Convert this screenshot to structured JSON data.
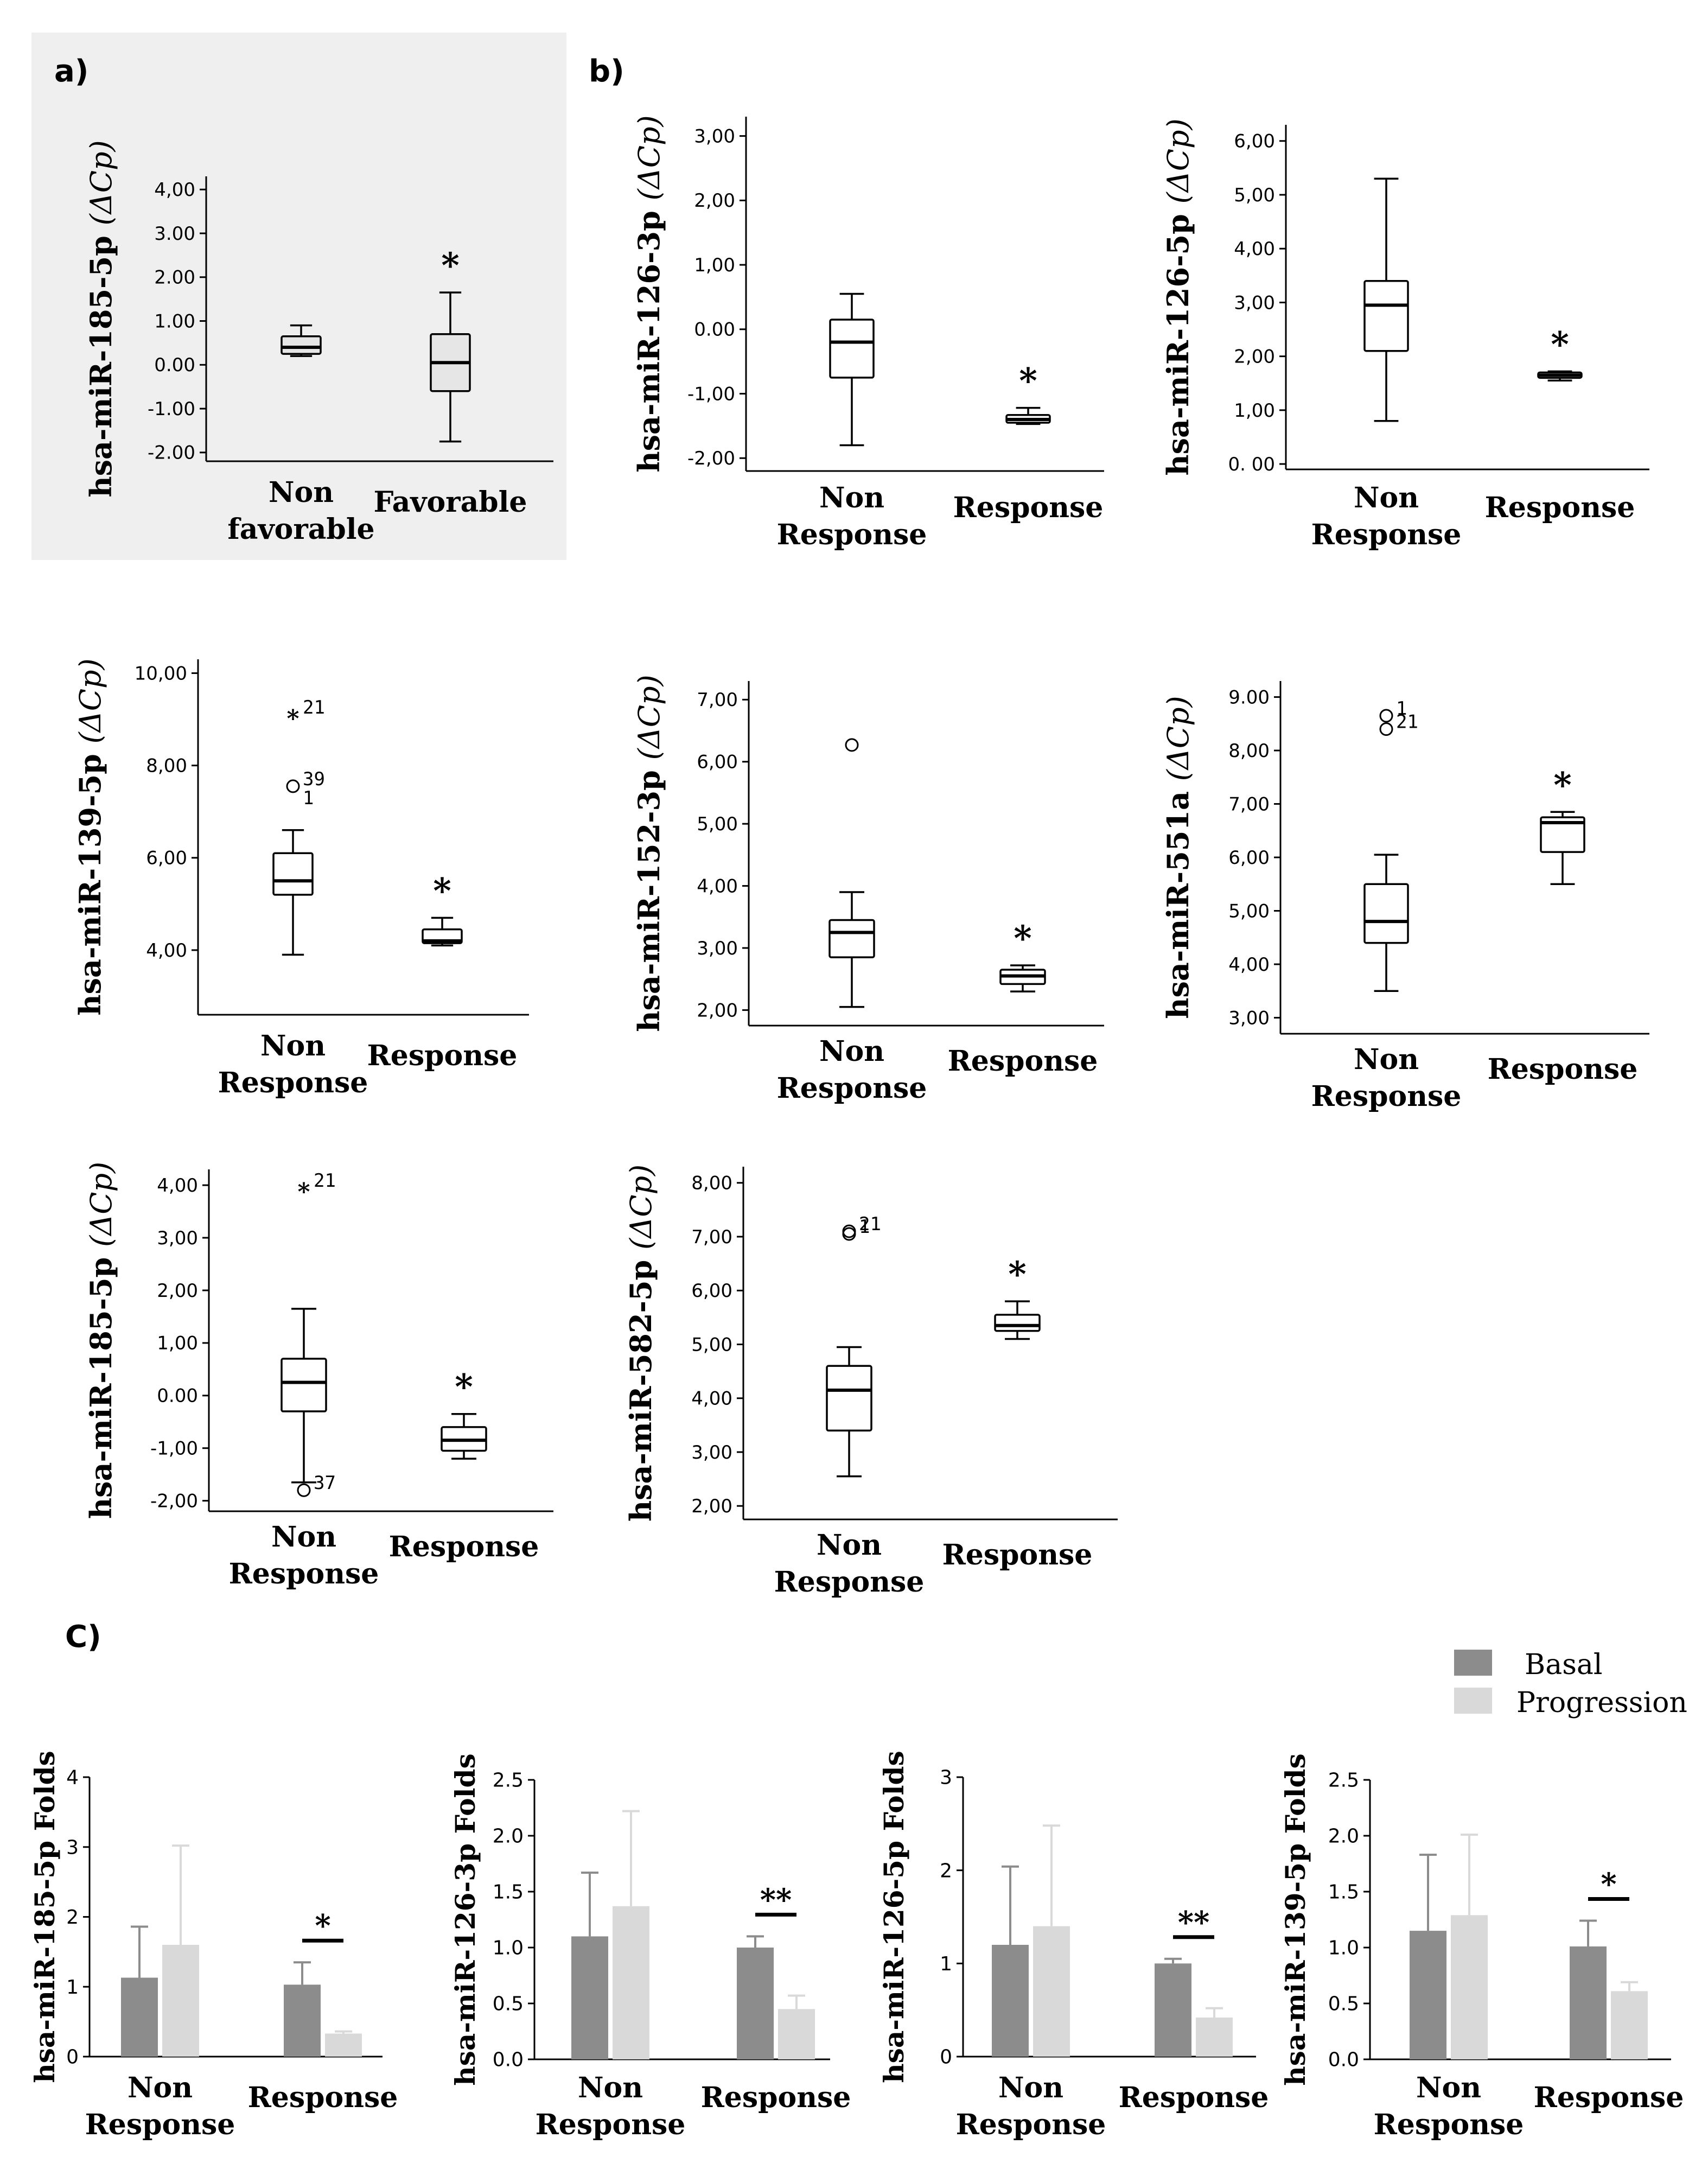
{
  "panels": {
    "a": "a)",
    "b": "b)",
    "c": "C)"
  },
  "legend": {
    "basal": "Basal",
    "progression": "Progression"
  },
  "colors": {
    "basal": "#8c8c8c",
    "progression": "#d9d9d9",
    "panel_a_bg": "#efefef",
    "panel_a_box": "#e6e6e6",
    "axis": "#000000"
  },
  "chart_data": [
    {
      "type": "box",
      "panel": "a",
      "ylabel_text": "hsa-miR-185-5p ",
      "ylabel_unit": "(ΔCp)",
      "yticks": [
        "4,00",
        "3.00",
        "2.00",
        "1.00",
        "0.00",
        "-1.00",
        "-2.00"
      ],
      "tick_values": [
        4,
        3,
        2,
        1,
        0,
        -1,
        -2
      ],
      "ylim": [
        -2.2,
        4.3
      ],
      "categories": [
        [
          "Non",
          "favorable"
        ],
        [
          "Favorable"
        ]
      ],
      "boxes": [
        {
          "min": 0.2,
          "q1": 0.25,
          "median": 0.4,
          "q3": 0.65,
          "max": 0.9
        },
        {
          "min": -1.75,
          "q1": -0.6,
          "median": 0.05,
          "q3": 0.7,
          "max": 1.65
        }
      ],
      "significance": [
        "",
        "*"
      ],
      "outliers": []
    },
    {
      "type": "box",
      "panel": "b",
      "ylabel_text": "hsa-miR-126-3p ",
      "ylabel_unit": "(ΔCp)",
      "yticks": [
        "3,00",
        "2,00",
        "1,00",
        "0.00",
        "-1,00",
        "-2,00"
      ],
      "tick_values": [
        3,
        2,
        1,
        0,
        -1,
        -2
      ],
      "ylim": [
        -2.2,
        3.3
      ],
      "categories": [
        [
          "Non",
          "Response"
        ],
        [
          "Response"
        ]
      ],
      "boxes": [
        {
          "min": -1.8,
          "q1": -0.75,
          "median": -0.2,
          "q3": 0.15,
          "max": 0.55
        },
        {
          "min": -1.47,
          "q1": -1.45,
          "median": -1.4,
          "q3": -1.33,
          "max": -1.22
        }
      ],
      "significance": [
        "",
        "*"
      ],
      "outliers": []
    },
    {
      "type": "box",
      "panel": "b",
      "ylabel_text": "hsa-miR-126-5p ",
      "ylabel_unit": "(ΔCp)",
      "yticks": [
        "6,00",
        "5,00",
        "4,00",
        "3,00",
        "2,00",
        "1,00",
        "0. 00"
      ],
      "tick_values": [
        6,
        5,
        4,
        3,
        2,
        1,
        0
      ],
      "ylim": [
        -0.1,
        6.3
      ],
      "categories": [
        [
          "Non",
          "Response"
        ],
        [
          "Response"
        ]
      ],
      "boxes": [
        {
          "min": 0.8,
          "q1": 2.1,
          "median": 2.95,
          "q3": 3.4,
          "max": 5.3
        },
        {
          "min": 1.55,
          "q1": 1.6,
          "median": 1.65,
          "q3": 1.7,
          "max": 1.72
        }
      ],
      "significance": [
        "",
        "*"
      ],
      "outliers": []
    },
    {
      "type": "box",
      "panel": "b",
      "ylabel_text": "hsa-miR-139-5p ",
      "ylabel_unit": "(ΔCp)",
      "yticks": [
        "10,00",
        "8,00",
        "6,00",
        "4,00"
      ],
      "tick_values": [
        10,
        8,
        6,
        4
      ],
      "ylim": [
        2.6,
        10.3
      ],
      "categories": [
        [
          "Non",
          "Response"
        ],
        [
          "Response"
        ]
      ],
      "boxes": [
        {
          "min": 3.9,
          "q1": 5.2,
          "median": 5.5,
          "q3": 6.1,
          "max": 6.6
        },
        {
          "min": 4.1,
          "q1": 4.15,
          "median": 4.2,
          "q3": 4.45,
          "max": 4.7
        }
      ],
      "significance": [
        "",
        "*"
      ],
      "outliers": [
        {
          "box": 0,
          "y": 9.1,
          "marker": "star",
          "label": "21"
        },
        {
          "box": 0,
          "y": 7.55,
          "marker": "circle",
          "label": "39"
        },
        {
          "box": 0,
          "y": 7.3,
          "marker": "none",
          "label": "1"
        }
      ]
    },
    {
      "type": "box",
      "panel": "b",
      "ylabel_text": "hsa-miR-152-3p ",
      "ylabel_unit": "(ΔCp)",
      "yticks": [
        "7,00",
        "6,00",
        "5,00",
        "4,00",
        "3,00",
        "2,00"
      ],
      "tick_values": [
        7,
        6,
        5,
        4,
        3,
        2
      ],
      "ylim": [
        1.75,
        7.3
      ],
      "categories": [
        [
          "Non",
          "Response"
        ],
        [
          "Response"
        ]
      ],
      "boxes": [
        {
          "min": 2.05,
          "q1": 2.85,
          "median": 3.25,
          "q3": 3.45,
          "max": 3.9
        },
        {
          "min": 2.3,
          "q1": 2.42,
          "median": 2.55,
          "q3": 2.65,
          "max": 2.72
        }
      ],
      "significance": [
        "",
        "*"
      ],
      "outliers": [
        {
          "box": 0,
          "y": 6.27,
          "marker": "circle",
          "label": ""
        }
      ]
    },
    {
      "type": "box",
      "panel": "b",
      "ylabel_text": "hsa-miR-551a ",
      "ylabel_unit": "(ΔCp)",
      "yticks": [
        "9.00",
        "8,00",
        "7,00",
        "6,00",
        "5,00",
        "4,00",
        "3,00"
      ],
      "tick_values": [
        9,
        8,
        7,
        6,
        5,
        4,
        3
      ],
      "ylim": [
        2.7,
        9.3
      ],
      "categories": [
        [
          "Non",
          "Response"
        ],
        [
          "Response"
        ]
      ],
      "boxes": [
        {
          "min": 3.5,
          "q1": 4.4,
          "median": 4.8,
          "q3": 5.5,
          "max": 6.05
        },
        {
          "min": 5.5,
          "q1": 6.1,
          "median": 6.65,
          "q3": 6.75,
          "max": 6.85
        }
      ],
      "significance": [
        "",
        "*"
      ],
      "outliers": [
        {
          "box": 0,
          "y": 8.65,
          "marker": "circle",
          "label": "1"
        },
        {
          "box": 0,
          "y": 8.4,
          "marker": "circle",
          "label": "21"
        }
      ]
    },
    {
      "type": "box",
      "panel": "b",
      "ylabel_text": "hsa-miR-185-5p ",
      "ylabel_unit": "(ΔCp)",
      "yticks": [
        "4,00",
        "3,00",
        "2,00",
        "1,00",
        "0.00",
        "-1,00",
        "-2,00"
      ],
      "tick_values": [
        4,
        3,
        2,
        1,
        0,
        -1,
        -2
      ],
      "ylim": [
        -2.2,
        4.3
      ],
      "categories": [
        [
          "Non",
          "Response"
        ],
        [
          "Response"
        ]
      ],
      "boxes": [
        {
          "min": -1.65,
          "q1": -0.3,
          "median": 0.25,
          "q3": 0.7,
          "max": 1.65
        },
        {
          "min": -1.2,
          "q1": -1.05,
          "median": -0.85,
          "q3": -0.6,
          "max": -0.35
        }
      ],
      "significance": [
        "",
        "*"
      ],
      "outliers": [
        {
          "box": 0,
          "y": 3.95,
          "marker": "star",
          "label": "21"
        },
        {
          "box": 0,
          "y": -1.8,
          "marker": "circle",
          "label": "37"
        }
      ]
    },
    {
      "type": "box",
      "panel": "b",
      "ylabel_text": "hsa-miR-582-5p ",
      "ylabel_unit": "(ΔCp)",
      "yticks": [
        "8,00",
        "7,00",
        "6,00",
        "5,00",
        "4,00",
        "3,00",
        "2,00"
      ],
      "tick_values": [
        8,
        7,
        6,
        5,
        4,
        3,
        2
      ],
      "ylim": [
        1.75,
        8.3
      ],
      "categories": [
        [
          "Non",
          "Response"
        ],
        [
          "Response"
        ]
      ],
      "boxes": [
        {
          "min": 2.55,
          "q1": 3.4,
          "median": 4.15,
          "q3": 4.6,
          "max": 4.95
        },
        {
          "min": 5.1,
          "q1": 5.25,
          "median": 5.35,
          "q3": 5.55,
          "max": 5.8
        }
      ],
      "significance": [
        "",
        "*"
      ],
      "outliers": [
        {
          "box": 0,
          "y": 7.1,
          "marker": "circle",
          "label": "21"
        },
        {
          "box": 0,
          "y": 7.05,
          "marker": "circle",
          "label": "1"
        }
      ]
    },
    {
      "type": "bar",
      "panel": "c",
      "ylabel": "hsa-miR-185-5p Folds",
      "yticks": [
        "4",
        "3",
        "2",
        "1",
        "0"
      ],
      "tick_values": [
        4,
        3,
        2,
        1,
        0
      ],
      "ylim": [
        0,
        4
      ],
      "categories": [
        [
          "Non",
          "Response"
        ],
        [
          "Response"
        ]
      ],
      "series": [
        {
          "name": "Basal",
          "values": [
            1.13,
            1.03
          ],
          "errors": [
            0.73,
            0.32
          ]
        },
        {
          "name": "Progression",
          "values": [
            1.6,
            0.33
          ],
          "errors": [
            1.42,
            0.03
          ]
        }
      ],
      "significance": [
        "",
        "*"
      ]
    },
    {
      "type": "bar",
      "panel": "c",
      "ylabel": "hsa-miR-126-3p Folds",
      "yticks": [
        "2.5",
        "2.0",
        "1.5",
        "1.0",
        "0.5",
        "0.0"
      ],
      "tick_values": [
        2.5,
        2.0,
        1.5,
        1.0,
        0.5,
        0.0
      ],
      "ylim": [
        0,
        2.5
      ],
      "categories": [
        [
          "Non",
          "Response"
        ],
        [
          "Response"
        ]
      ],
      "series": [
        {
          "name": "Basal",
          "values": [
            1.1,
            1.0
          ],
          "errors": [
            0.57,
            0.1
          ]
        },
        {
          "name": "Progression",
          "values": [
            1.37,
            0.45
          ],
          "errors": [
            0.85,
            0.12
          ]
        }
      ],
      "significance": [
        "",
        "**"
      ]
    },
    {
      "type": "bar",
      "panel": "c",
      "ylabel": "hsa-miR-126-5p Folds",
      "yticks": [
        "3",
        "2",
        "1",
        "0"
      ],
      "tick_values": [
        3,
        2,
        1,
        0
      ],
      "ylim": [
        0,
        3
      ],
      "categories": [
        [
          "Non",
          "Response"
        ],
        [
          "Response"
        ]
      ],
      "series": [
        {
          "name": "Basal",
          "values": [
            1.2,
            1.0
          ],
          "errors": [
            0.84,
            0.05
          ]
        },
        {
          "name": "Progression",
          "values": [
            1.4,
            0.42
          ],
          "errors": [
            1.08,
            0.1
          ]
        }
      ],
      "significance": [
        "",
        "**"
      ]
    },
    {
      "type": "bar",
      "panel": "c",
      "ylabel": "hsa-miR-139-5p Folds",
      "yticks": [
        "2.5",
        "2.0",
        "1.5",
        "1.0",
        "0.5",
        "0.0"
      ],
      "tick_values": [
        2.5,
        2.0,
        1.5,
        1.0,
        0.5,
        0.0
      ],
      "ylim": [
        0,
        2.5
      ],
      "categories": [
        [
          "Non",
          "Response"
        ],
        [
          "Response"
        ]
      ],
      "series": [
        {
          "name": "Basal",
          "values": [
            1.15,
            1.01
          ],
          "errors": [
            0.68,
            0.23
          ]
        },
        {
          "name": "Progression",
          "values": [
            1.29,
            0.61
          ],
          "errors": [
            0.72,
            0.08
          ]
        }
      ],
      "significance": [
        "",
        "*"
      ]
    }
  ]
}
